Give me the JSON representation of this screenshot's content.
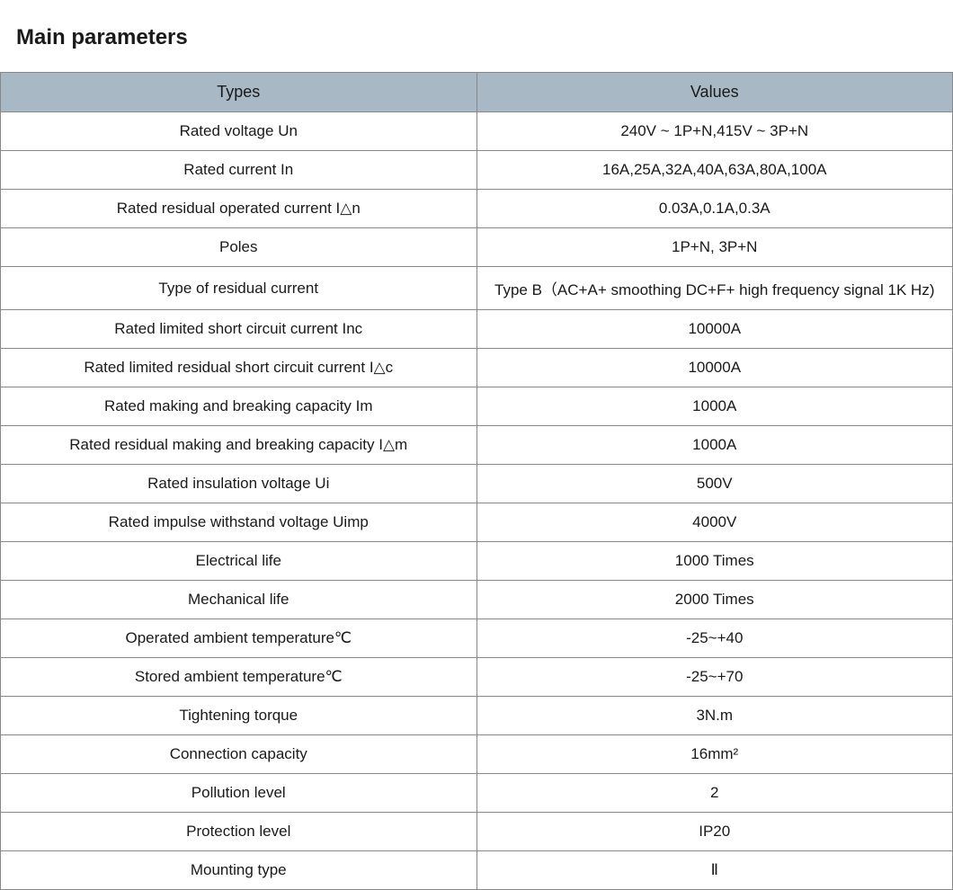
{
  "title": "Main parameters",
  "table": {
    "type": "table",
    "header_bg_color": "#a8b8c4",
    "border_color": "#888888",
    "text_color": "#1a1a1a",
    "cell_bg_color": "#ffffff",
    "title_fontsize": 24,
    "header_fontsize": 18,
    "cell_fontsize": 17,
    "column_widths": [
      "50%",
      "50%"
    ],
    "columns": [
      "Types",
      "Values"
    ],
    "rows": [
      [
        "Rated voltage Un",
        "240V ~ 1P+N,415V ~ 3P+N"
      ],
      [
        "Rated current In",
        "16A,25A,32A,40A,63A,80A,100A"
      ],
      [
        "Rated residual operated current I△n",
        "0.03A,0.1A,0.3A"
      ],
      [
        "Poles",
        "1P+N, 3P+N"
      ],
      [
        "Type of residual current",
        "Type B（AC+A+ smoothing DC+F+ high frequency signal 1K Hz)"
      ],
      [
        "Rated limited short circuit current Inc",
        "10000A"
      ],
      [
        "Rated limited residual short circuit current I△c",
        "10000A"
      ],
      [
        "Rated making and breaking capacity Im",
        "1000A"
      ],
      [
        "Rated residual making and breaking capacity I△m",
        "1000A"
      ],
      [
        "Rated insulation voltage Ui",
        "500V"
      ],
      [
        "Rated impulse withstand voltage Uimp",
        "4000V"
      ],
      [
        "Electrical life",
        "1000 Times"
      ],
      [
        "Mechanical life",
        "2000 Times"
      ],
      [
        "Operated ambient temperature℃",
        "-25~+40"
      ],
      [
        "Stored ambient temperature℃",
        "-25~+70"
      ],
      [
        "Tightening torque",
        "3N.m"
      ],
      [
        "Connection capacity",
        "16mm²"
      ],
      [
        "Pollution level",
        "2"
      ],
      [
        "Protection level",
        "IP20"
      ],
      [
        "Mounting type",
        "Ⅱ"
      ]
    ]
  }
}
